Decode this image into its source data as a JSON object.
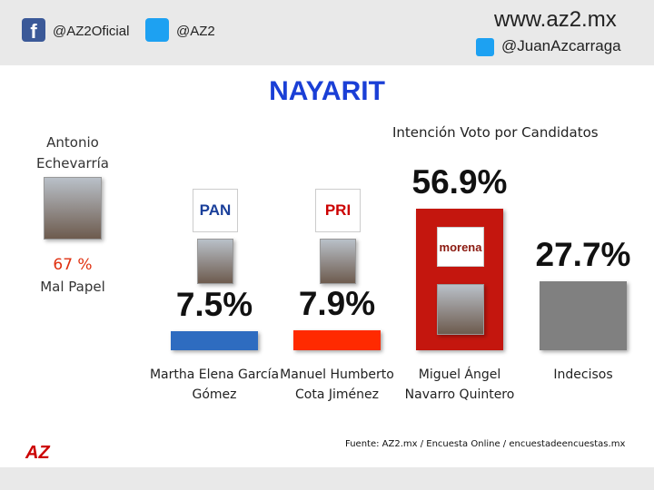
{
  "header": {
    "facebook": "@AZ2Oficial",
    "twitter": "@AZ2",
    "site": "www.az2.mx",
    "twitter_personal": "@JuanAzcarraga"
  },
  "chart_data": {
    "type": "bar",
    "title": "NAYARIT",
    "subtitle": "Intención Voto por Candidatos",
    "categories": [
      "Martha Elena García Gómez",
      "Manuel Humberto Cota Jiménez",
      "Miguel Ángel Navarro Quintero",
      "Indecisos"
    ],
    "parties": [
      "PAN",
      "PRI",
      "morena",
      null
    ],
    "values": [
      7.5,
      7.9,
      56.9,
      27.7
    ],
    "value_labels": [
      "7.5%",
      "7.9%",
      "56.9%",
      "27.7%"
    ],
    "colors": [
      "#2e6cc0",
      "#ff2a00",
      "#c4160e",
      "#808080"
    ],
    "annotation": {
      "name": "Antonio Echevarría",
      "label": "67 %",
      "note": "Mal Papel"
    },
    "source": "Fuente: AZ2.mx  / Encuesta Online / encuestadeencuestas.mx"
  }
}
